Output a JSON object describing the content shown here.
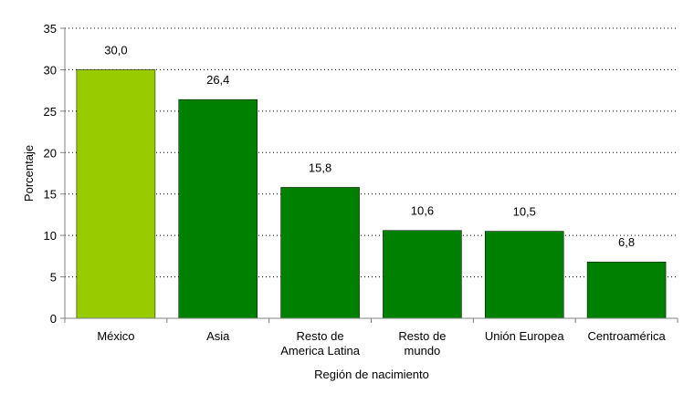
{
  "chart_data": {
    "type": "bar",
    "categories": [
      [
        "México"
      ],
      [
        "Asia"
      ],
      [
        "Resto de",
        "America Latina"
      ],
      [
        "Resto de",
        "mundo"
      ],
      [
        "Unión Europea"
      ],
      [
        "Centroamérica"
      ]
    ],
    "values": [
      30.0,
      26.4,
      15.8,
      10.6,
      10.5,
      6.8
    ],
    "value_labels": [
      "30,0",
      "26,4",
      "15,8",
      "10,6",
      "10,5",
      "6,8"
    ],
    "xlabel": "Región de nacimiento",
    "ylabel": "Porcentaje",
    "ylim": [
      0,
      35
    ],
    "yticks": [
      0,
      5,
      10,
      15,
      20,
      25,
      30,
      35
    ],
    "grid": true,
    "grid_style": "dotted",
    "colors": {
      "highlight": "#99CC00",
      "default": "#008000",
      "bar_outline": "#000000",
      "grid": "#000000",
      "axis": "#808080"
    },
    "highlight_index": 0
  }
}
